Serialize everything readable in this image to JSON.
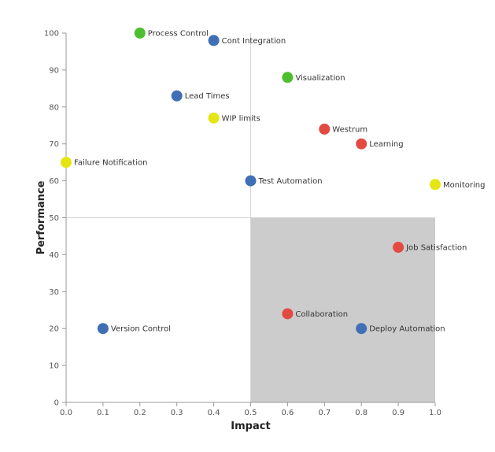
{
  "chart_data": {
    "type": "scatter",
    "title": "",
    "xlabel": "Impact",
    "ylabel": "Performance",
    "xlim": [
      0,
      1.0
    ],
    "ylim": [
      0,
      100
    ],
    "xticks": [
      0,
      0.1,
      0.2,
      0.3,
      0.4,
      0.5,
      0.6,
      0.7,
      0.8,
      0.9,
      1.0
    ],
    "xtick_labels": [
      "0.0",
      "0.1",
      "0.2",
      "0.3",
      "0.4",
      "0.5",
      "0.6",
      "0.7",
      "0.8",
      "0.9",
      "1.0"
    ],
    "yticks": [
      0,
      10,
      20,
      30,
      40,
      50,
      60,
      70,
      80,
      90,
      100
    ],
    "ytick_labels": [
      "0",
      "10",
      "20",
      "30",
      "40",
      "50",
      "60",
      "70",
      "80",
      "90",
      "100"
    ],
    "reference_lines": {
      "x": 0.5,
      "y": 50
    },
    "highlight_region": {
      "x": [
        0.5,
        1.0
      ],
      "y": [
        0,
        50
      ],
      "color": "#cccccc"
    },
    "colors": {
      "green": "#4dbf2f",
      "blue": "#3f6fb5",
      "yellow": "#e5e512",
      "red": "#e24a42"
    },
    "points": [
      {
        "label": "Process Control",
        "x": 0.2,
        "y": 100,
        "color": "green"
      },
      {
        "label": "Cont Integration",
        "x": 0.4,
        "y": 98,
        "color": "blue"
      },
      {
        "label": "Visualization",
        "x": 0.6,
        "y": 88,
        "color": "green"
      },
      {
        "label": "Lead Times",
        "x": 0.3,
        "y": 83,
        "color": "blue"
      },
      {
        "label": "WIP limits",
        "x": 0.4,
        "y": 77,
        "color": "yellow"
      },
      {
        "label": "Westrum",
        "x": 0.7,
        "y": 74,
        "color": "red"
      },
      {
        "label": "Learning",
        "x": 0.8,
        "y": 70,
        "color": "red"
      },
      {
        "label": "Failure Notification",
        "x": 0.0,
        "y": 65,
        "color": "yellow"
      },
      {
        "label": "Test Automation",
        "x": 0.5,
        "y": 60,
        "color": "blue"
      },
      {
        "label": "Monitoring",
        "x": 1.0,
        "y": 59,
        "color": "yellow"
      },
      {
        "label": "Job Satisfaction",
        "x": 0.9,
        "y": 42,
        "color": "red"
      },
      {
        "label": "Collaboration",
        "x": 0.6,
        "y": 24,
        "color": "red"
      },
      {
        "label": "Version Control",
        "x": 0.1,
        "y": 20,
        "color": "blue"
      },
      {
        "label": "Deploy Automation",
        "x": 0.8,
        "y": 20,
        "color": "blue"
      }
    ]
  }
}
